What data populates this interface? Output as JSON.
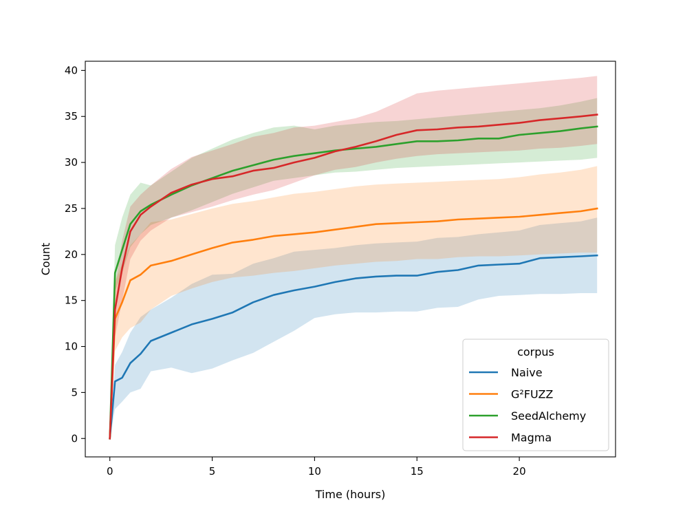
{
  "chart_data": {
    "type": "line",
    "title": "",
    "xlabel": "Time (hours)",
    "ylabel": "Count",
    "xlim": [
      -1.2,
      24.7
    ],
    "ylim": [
      -2.0,
      41.0
    ],
    "xticks": [
      0,
      5,
      10,
      15,
      20
    ],
    "xtick_labels": [
      "0",
      "5",
      "10",
      "15",
      "20"
    ],
    "yticks": [
      0,
      5,
      10,
      15,
      20,
      25,
      30,
      35,
      40
    ],
    "ytick_labels": [
      "0",
      "5",
      "10",
      "15",
      "20",
      "25",
      "30",
      "35",
      "40"
    ],
    "grid": false,
    "legend": {
      "title": "corpus",
      "position": "lower-right"
    },
    "series": [
      {
        "name": "Naive",
        "color": "#1f77b4",
        "x": [
          0,
          0.25,
          0.6,
          1,
          1.5,
          2,
          3,
          4,
          5,
          6,
          7,
          8,
          9,
          10,
          11,
          12,
          13,
          14,
          15,
          16,
          17,
          18,
          19,
          20,
          21,
          22,
          23,
          23.8
        ],
        "y": [
          0,
          6.2,
          6.6,
          8.2,
          9.2,
          10.6,
          11.5,
          12.4,
          13.0,
          13.7,
          14.8,
          15.6,
          16.1,
          16.5,
          17.0,
          17.4,
          17.6,
          17.7,
          17.7,
          18.1,
          18.3,
          18.8,
          18.9,
          19.0,
          19.6,
          19.7,
          19.8,
          19.9
        ],
        "lower": [
          0,
          3.2,
          4.0,
          5.0,
          5.4,
          7.3,
          7.7,
          7.1,
          7.6,
          8.5,
          9.3,
          10.5,
          11.7,
          13.1,
          13.5,
          13.7,
          13.7,
          13.8,
          13.8,
          14.2,
          14.3,
          15.1,
          15.5,
          15.6,
          15.7,
          15.7,
          15.8,
          15.8
        ],
        "upper": [
          0,
          8.0,
          9.4,
          11.5,
          13.2,
          14.0,
          15.3,
          16.8,
          17.8,
          17.9,
          19.0,
          19.6,
          20.3,
          20.5,
          20.7,
          21.0,
          21.2,
          21.3,
          21.4,
          21.8,
          21.9,
          22.2,
          22.4,
          22.6,
          23.2,
          23.4,
          23.6,
          24.0
        ]
      },
      {
        "name": "G²FUZZ",
        "color": "#ff7f0e",
        "x": [
          0,
          0.25,
          0.6,
          1,
          1.5,
          2,
          3,
          4,
          5,
          6,
          7,
          8,
          9,
          10,
          11,
          12,
          13,
          14,
          15,
          16,
          17,
          18,
          19,
          20,
          21,
          22,
          23,
          23.8
        ],
        "y": [
          0,
          13.0,
          14.8,
          17.2,
          17.8,
          18.8,
          19.3,
          20.0,
          20.7,
          21.3,
          21.6,
          22.0,
          22.2,
          22.4,
          22.7,
          23.0,
          23.3,
          23.4,
          23.5,
          23.6,
          23.8,
          23.9,
          24.0,
          24.1,
          24.3,
          24.5,
          24.7,
          25.0
        ],
        "lower": [
          0,
          9.5,
          11.0,
          12.0,
          12.6,
          14.0,
          15.5,
          16.3,
          17.0,
          17.5,
          17.7,
          18.0,
          18.2,
          18.5,
          18.8,
          19.0,
          19.2,
          19.3,
          19.5,
          19.5,
          19.7,
          19.8,
          19.8,
          19.9,
          20.0,
          20.1,
          20.2,
          20.2
        ],
        "upper": [
          0,
          17.0,
          19.0,
          21.0,
          22.2,
          23.5,
          23.8,
          24.4,
          25.0,
          25.5,
          25.8,
          26.2,
          26.6,
          26.8,
          27.1,
          27.4,
          27.6,
          27.7,
          27.8,
          27.9,
          28.0,
          28.1,
          28.2,
          28.4,
          28.7,
          28.9,
          29.2,
          29.6
        ]
      },
      {
        "name": "SeedAlchemy",
        "color": "#2ca02c",
        "x": [
          0,
          0.25,
          0.6,
          1,
          1.5,
          2,
          3,
          4,
          5,
          6,
          7,
          8,
          9,
          10,
          11,
          12,
          13,
          14,
          15,
          16,
          17,
          18,
          19,
          20,
          21,
          22,
          23,
          23.8
        ],
        "y": [
          0,
          18.0,
          20.5,
          23.3,
          24.7,
          25.4,
          26.5,
          27.5,
          28.3,
          29.1,
          29.7,
          30.3,
          30.7,
          31.0,
          31.3,
          31.5,
          31.7,
          32.0,
          32.3,
          32.3,
          32.4,
          32.6,
          32.6,
          33.0,
          33.2,
          33.4,
          33.7,
          33.9
        ],
        "lower": [
          0,
          16.0,
          18.0,
          20.8,
          22.2,
          23.2,
          24.0,
          24.8,
          25.7,
          26.6,
          27.3,
          28.0,
          28.3,
          28.6,
          28.9,
          29.0,
          29.2,
          29.4,
          29.5,
          29.6,
          29.7,
          29.8,
          29.9,
          30.0,
          30.1,
          30.2,
          30.3,
          30.5
        ],
        "upper": [
          0,
          21.0,
          24.0,
          26.5,
          27.8,
          27.5,
          29.0,
          30.5,
          31.5,
          32.5,
          33.2,
          33.8,
          34.0,
          33.6,
          34.0,
          34.2,
          34.4,
          34.5,
          34.7,
          34.9,
          35.1,
          35.3,
          35.5,
          35.7,
          35.9,
          36.2,
          36.6,
          37.0
        ]
      },
      {
        "name": "Magma",
        "color": "#d62728",
        "x": [
          0,
          0.25,
          0.6,
          1,
          1.5,
          2,
          3,
          4,
          5,
          6,
          7,
          8,
          9,
          10,
          11,
          12,
          13,
          14,
          15,
          16,
          17,
          18,
          19,
          20,
          21,
          22,
          23,
          23.8
        ],
        "y": [
          0,
          14.0,
          18.5,
          22.5,
          24.3,
          25.2,
          26.7,
          27.6,
          28.2,
          28.5,
          29.1,
          29.4,
          30.0,
          30.5,
          31.2,
          31.7,
          32.3,
          33.0,
          33.5,
          33.6,
          33.8,
          33.9,
          34.1,
          34.3,
          34.6,
          34.8,
          35.0,
          35.2
        ],
        "lower": [
          0,
          11.0,
          15.0,
          19.5,
          21.5,
          22.6,
          24.0,
          24.6,
          25.2,
          25.9,
          26.5,
          27.0,
          27.8,
          28.6,
          29.2,
          29.5,
          30.0,
          30.4,
          30.7,
          30.9,
          31.0,
          31.1,
          31.2,
          31.3,
          31.5,
          31.6,
          31.8,
          32.0
        ],
        "upper": [
          0,
          16.5,
          21.5,
          25.2,
          26.5,
          27.5,
          29.3,
          30.6,
          31.3,
          32.0,
          32.8,
          33.2,
          33.8,
          34.0,
          34.4,
          34.8,
          35.5,
          36.5,
          37.5,
          37.8,
          38.0,
          38.2,
          38.4,
          38.6,
          38.8,
          39.0,
          39.2,
          39.4
        ]
      }
    ]
  }
}
